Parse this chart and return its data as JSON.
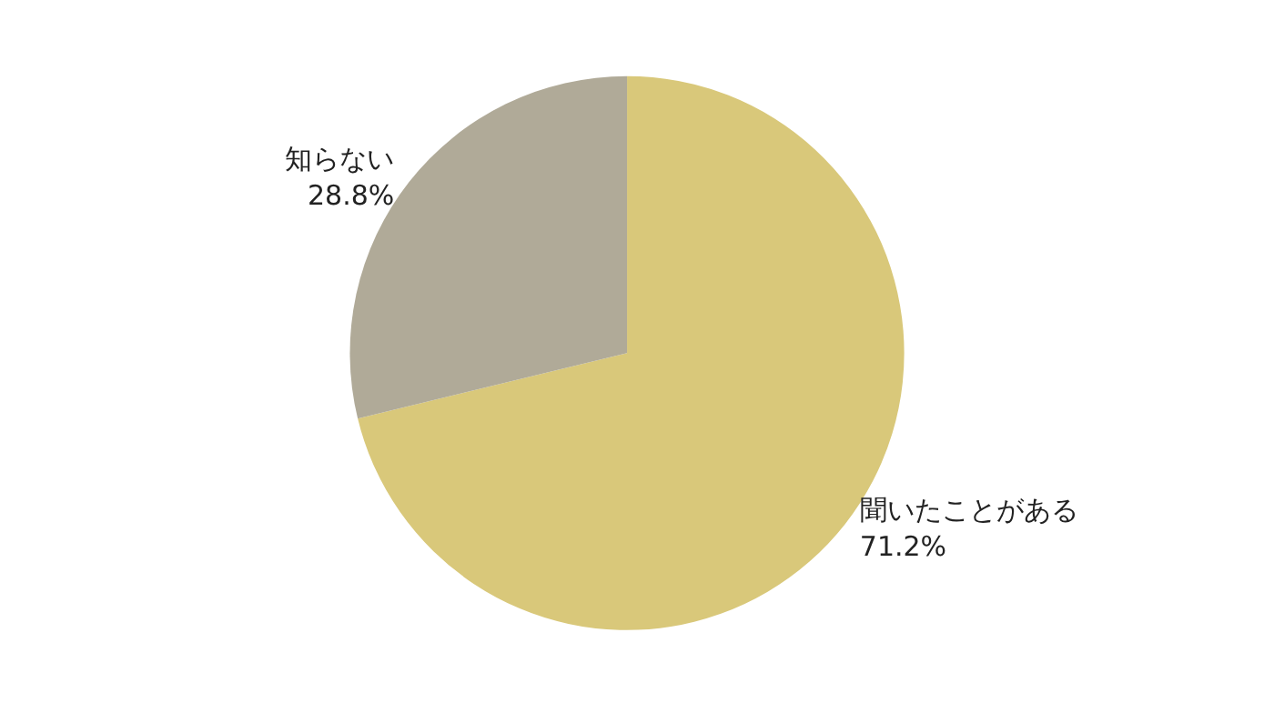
{
  "chart_data": {
    "type": "pie",
    "categories": [
      "聞いたことがある",
      "知らない"
    ],
    "values": [
      71.2,
      28.8
    ],
    "colors": [
      "#d9c87a",
      "#b0aa98"
    ],
    "value_labels": [
      "71.2%",
      "28.8%"
    ],
    "legend": false
  }
}
